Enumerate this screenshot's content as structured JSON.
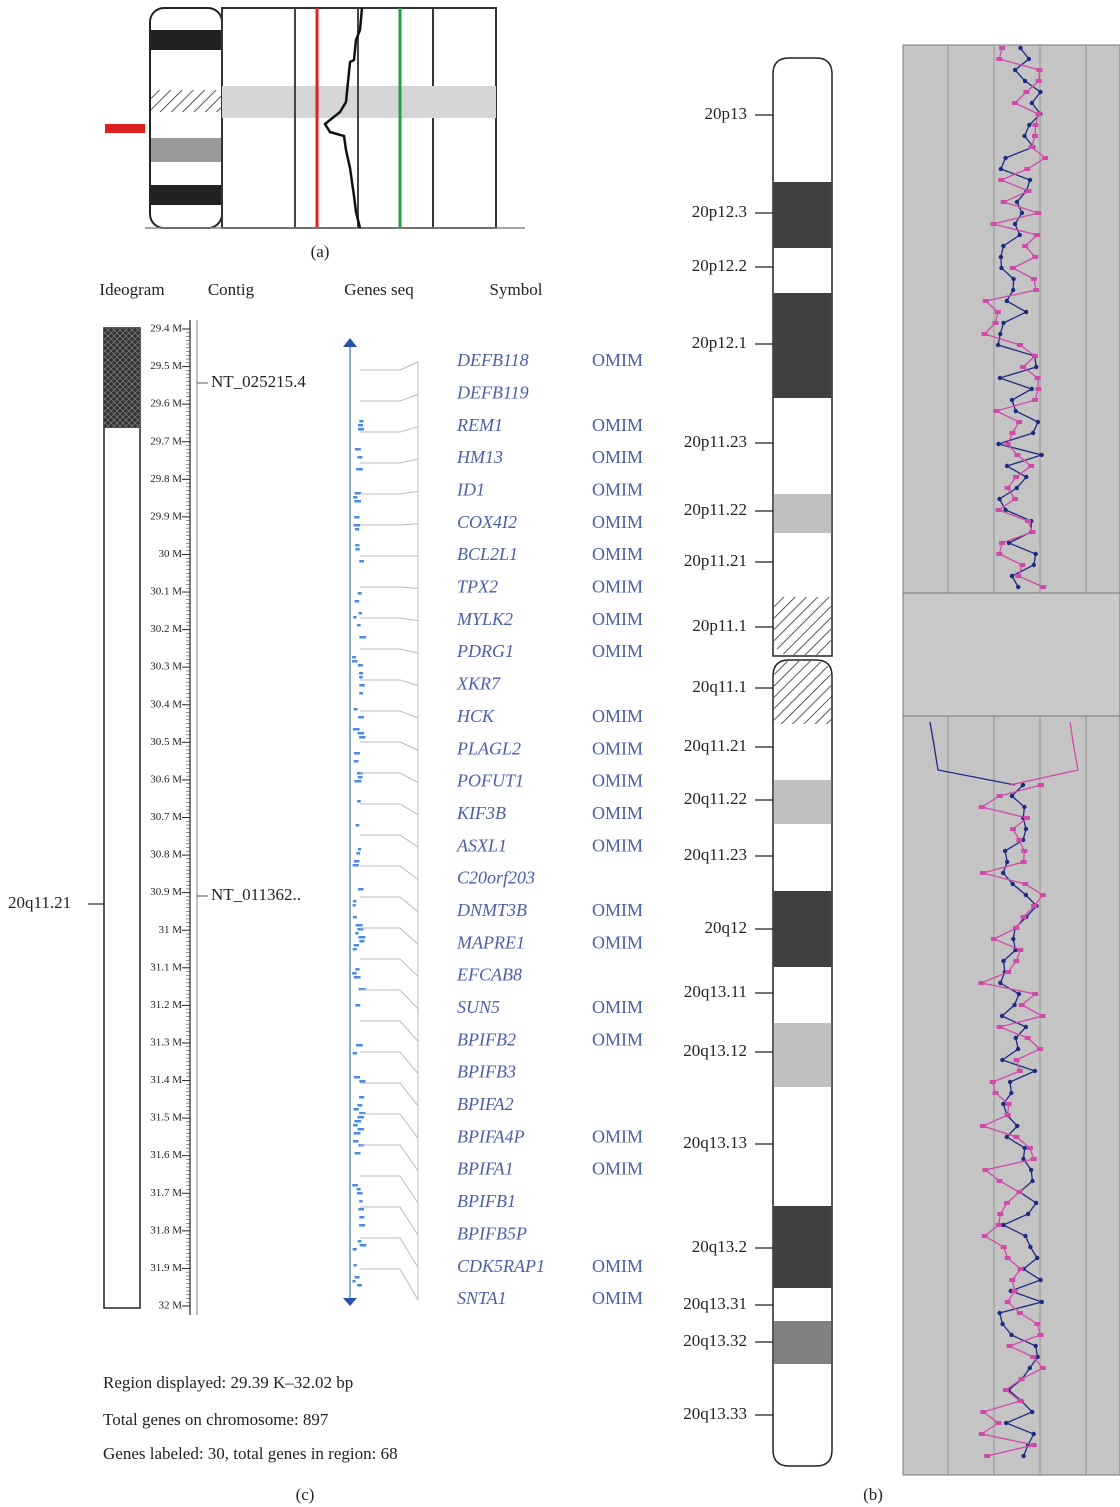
{
  "panel_a": {
    "label": "(a)"
  },
  "panel_c": {
    "headers": [
      "Ideogram",
      "Contig",
      "Genes seq",
      "Symbol"
    ],
    "band": "20q11.21",
    "scale": [
      "29.4 M",
      "29.5 M",
      "29.6 M",
      "29.7 M",
      "29.8 M",
      "29.9 M",
      "30 M",
      "30.1 M",
      "30.2 M",
      "30.3 M",
      "30.4 M",
      "30.5 M",
      "30.6 M",
      "30.7 M",
      "30.8 M",
      "30.9 M",
      "31 M",
      "31.1 M",
      "31.2 M",
      "31.3 M",
      "31.4 M",
      "31.5 M",
      "31.6 M",
      "31.7 M",
      "31.8 M",
      "31.9 M",
      "32 M"
    ],
    "contigs": [
      "NT_025215.4",
      "NT_011362.."
    ],
    "genes": [
      {
        "symbol": "DEFB118",
        "link": "OMIM"
      },
      {
        "symbol": "DEFB119"
      },
      {
        "symbol": "REM1",
        "link": "OMIM"
      },
      {
        "symbol": "HM13",
        "link": "OMIM"
      },
      {
        "symbol": "ID1",
        "link": "OMIM"
      },
      {
        "symbol": "COX4I2",
        "link": "OMIM"
      },
      {
        "symbol": "BCL2L1",
        "link": "OMIM"
      },
      {
        "symbol": "TPX2",
        "link": "OMIM"
      },
      {
        "symbol": "MYLK2",
        "link": "OMIM"
      },
      {
        "symbol": "PDRG1",
        "link": "OMIM"
      },
      {
        "symbol": "XKR7"
      },
      {
        "symbol": "HCK",
        "link": "OMIM"
      },
      {
        "symbol": "PLAGL2",
        "link": "OMIM"
      },
      {
        "symbol": "POFUT1",
        "link": "OMIM"
      },
      {
        "symbol": "KIF3B",
        "link": "OMIM"
      },
      {
        "symbol": "ASXL1",
        "link": "OMIM"
      },
      {
        "symbol": "C20orf203"
      },
      {
        "symbol": "DNMT3B",
        "link": "OMIM"
      },
      {
        "symbol": "MAPRE1",
        "link": "OMIM"
      },
      {
        "symbol": "EFCAB8"
      },
      {
        "symbol": "SUN5",
        "link": "OMIM"
      },
      {
        "symbol": "BPIFB2",
        "link": "OMIM"
      },
      {
        "symbol": "BPIFB3"
      },
      {
        "symbol": "BPIFA2"
      },
      {
        "symbol": "BPIFA4P",
        "link": "OMIM"
      },
      {
        "symbol": "BPIFA1",
        "link": "OMIM"
      },
      {
        "symbol": "BPIFB1"
      },
      {
        "symbol": "BPIFB5P"
      },
      {
        "symbol": "CDK5RAP1",
        "link": "OMIM"
      },
      {
        "symbol": "SNTA1",
        "link": "OMIM"
      }
    ],
    "footer": [
      "Region displayed: 29.39 K–32.02 bp",
      "Total genes on chromosome: 897",
      "Genes labeled: 30, total genes in region: 68"
    ],
    "label": "(c)"
  },
  "panel_b": {
    "bands": [
      "20p13",
      "20p12.3",
      "20p12.2",
      "20p12.1",
      "20p11.23",
      "20p11.22",
      "20p11.21",
      "20p11.1",
      "20q11.1",
      "20q11.21",
      "20q11.22",
      "20q11.23",
      "20q12",
      "20q13.11",
      "20q13.12",
      "20q13.13",
      "20q13.2",
      "20q13.31",
      "20q13.32",
      "20q13.33"
    ],
    "label": "(b)"
  }
}
